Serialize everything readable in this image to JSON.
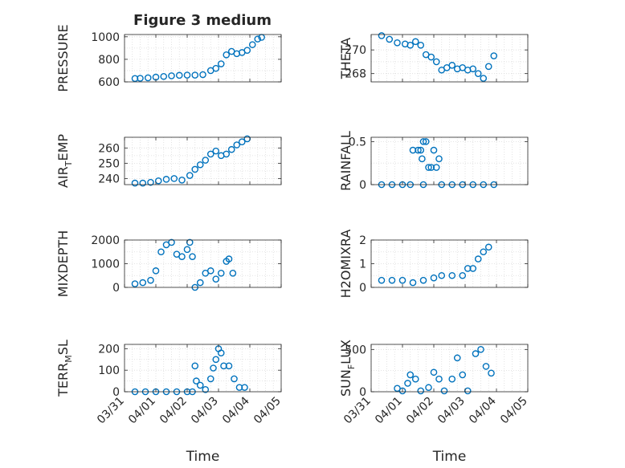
{
  "figure": {
    "title": "Figure 3 medium",
    "xlabel": "Time"
  },
  "chart_data": [
    {
      "type": "scatter",
      "ylabel": "PRESSURE",
      "ylim": [
        600,
        1020
      ],
      "yticks": [
        600,
        800,
        1000
      ],
      "ytick_labels": [
        "600",
        "800",
        "1000"
      ],
      "grid": true,
      "x_dates": true,
      "points": [
        [
          "03/31 08:00",
          630
        ],
        [
          "03/31 12:00",
          632
        ],
        [
          "03/31 18:00",
          636
        ],
        [
          "04/01 00:00",
          642
        ],
        [
          "04/01 06:00",
          648
        ],
        [
          "04/01 12:00",
          654
        ],
        [
          "04/01 18:00",
          658
        ],
        [
          "04/02 00:00",
          660
        ],
        [
          "04/02 06:00",
          660
        ],
        [
          "04/02 12:00",
          664
        ],
        [
          "04/02 18:00",
          700
        ],
        [
          "04/02 22:00",
          720
        ],
        [
          "04/03 02:00",
          760
        ],
        [
          "04/03 06:00",
          840
        ],
        [
          "04/03 10:00",
          870
        ],
        [
          "04/03 14:00",
          850
        ],
        [
          "04/03 18:00",
          860
        ],
        [
          "04/03 22:00",
          880
        ],
        [
          "04/04 02:00",
          930
        ],
        [
          "04/04 06:00",
          980
        ],
        [
          "04/04 09:00",
          995
        ]
      ]
    },
    {
      "type": "scatter",
      "ylabel": "THETA",
      "ylim": [
        267.3,
        271.3
      ],
      "yticks": [
        268,
        270
      ],
      "ytick_labels": [
        "268",
        "270"
      ],
      "grid": true,
      "x_dates": true,
      "points": [
        [
          "03/31 08:00",
          271.2
        ],
        [
          "03/31 14:00",
          270.9
        ],
        [
          "03/31 20:00",
          270.6
        ],
        [
          "04/01 02:00",
          270.5
        ],
        [
          "04/01 06:00",
          270.4
        ],
        [
          "04/01 10:00",
          270.7
        ],
        [
          "04/01 14:00",
          270.4
        ],
        [
          "04/01 18:00",
          269.6
        ],
        [
          "04/01 22:00",
          269.4
        ],
        [
          "04/02 02:00",
          269.0
        ],
        [
          "04/02 06:00",
          268.3
        ],
        [
          "04/02 10:00",
          268.5
        ],
        [
          "04/02 14:00",
          268.7
        ],
        [
          "04/02 18:00",
          268.4
        ],
        [
          "04/02 22:00",
          268.5
        ],
        [
          "04/03 02:00",
          268.3
        ],
        [
          "04/03 06:00",
          268.4
        ],
        [
          "04/03 10:00",
          268.0
        ],
        [
          "04/03 14:00",
          267.6
        ],
        [
          "04/03 18:00",
          268.6
        ],
        [
          "04/03 22:00",
          269.5
        ]
      ]
    },
    {
      "type": "scatter",
      "ylabel_parts": [
        "AIR",
        "T",
        "EMP"
      ],
      "ylim": [
        236,
        267
      ],
      "yticks": [
        240,
        250,
        260
      ],
      "ytick_labels": [
        "240",
        "250",
        "260"
      ],
      "grid": true,
      "x_dates": true,
      "points": [
        [
          "03/31 08:00",
          237
        ],
        [
          "03/31 14:00",
          237
        ],
        [
          "03/31 20:00",
          237.5
        ],
        [
          "04/01 02:00",
          238.5
        ],
        [
          "04/01 08:00",
          239.5
        ],
        [
          "04/01 14:00",
          240
        ],
        [
          "04/01 20:00",
          239
        ],
        [
          "04/02 02:00",
          242
        ],
        [
          "04/02 06:00",
          246
        ],
        [
          "04/02 10:00",
          249
        ],
        [
          "04/02 14:00",
          252
        ],
        [
          "04/02 18:00",
          256
        ],
        [
          "04/02 22:00",
          258
        ],
        [
          "04/03 02:00",
          255
        ],
        [
          "04/03 06:00",
          256
        ],
        [
          "04/03 10:00",
          259
        ],
        [
          "04/03 14:00",
          262
        ],
        [
          "04/03 18:00",
          264
        ],
        [
          "04/03 22:00",
          266
        ]
      ]
    },
    {
      "type": "scatter",
      "ylabel": "RAINFALL",
      "ylim": [
        0,
        0.55
      ],
      "yticks": [
        0,
        0.5
      ],
      "ytick_labels": [
        "0",
        "0.5"
      ],
      "grid": true,
      "x_dates": true,
      "points": [
        [
          "03/31 08:00",
          0
        ],
        [
          "03/31 16:00",
          0
        ],
        [
          "04/01 00:00",
          0
        ],
        [
          "04/01 06:00",
          0
        ],
        [
          "04/01 08:00",
          0.4
        ],
        [
          "04/01 12:00",
          0.4
        ],
        [
          "04/01 14:00",
          0.4
        ],
        [
          "04/01 15:00",
          0.3
        ],
        [
          "04/01 16:00",
          0.5
        ],
        [
          "04/01 18:00",
          0.5
        ],
        [
          "04/01 20:00",
          0.2
        ],
        [
          "04/01 22:00",
          0.2
        ],
        [
          "04/02 00:00",
          0.4
        ],
        [
          "04/02 02:00",
          0.2
        ],
        [
          "04/02 04:00",
          0.3
        ],
        [
          "04/01 16:00",
          0
        ],
        [
          "04/02 06:00",
          0
        ],
        [
          "04/02 14:00",
          0
        ],
        [
          "04/02 22:00",
          0
        ],
        [
          "04/03 06:00",
          0
        ],
        [
          "04/03 14:00",
          0
        ],
        [
          "04/03 22:00",
          0
        ]
      ]
    },
    {
      "type": "scatter",
      "ylabel": "MIXDEPTH",
      "ylim": [
        0,
        2000
      ],
      "yticks": [
        0,
        1000,
        2000
      ],
      "ytick_labels": [
        "0",
        "1000",
        "2000"
      ],
      "grid": true,
      "x_dates": true,
      "points": [
        [
          "03/31 08:00",
          150
        ],
        [
          "03/31 14:00",
          200
        ],
        [
          "03/31 20:00",
          300
        ],
        [
          "04/01 00:00",
          700
        ],
        [
          "04/01 04:00",
          1500
        ],
        [
          "04/01 08:00",
          1800
        ],
        [
          "04/01 12:00",
          1900
        ],
        [
          "04/01 16:00",
          1400
        ],
        [
          "04/01 20:00",
          1300
        ],
        [
          "04/02 00:00",
          1600
        ],
        [
          "04/02 02:00",
          1900
        ],
        [
          "04/02 04:00",
          1300
        ],
        [
          "04/02 06:00",
          0
        ],
        [
          "04/02 10:00",
          200
        ],
        [
          "04/02 14:00",
          600
        ],
        [
          "04/02 18:00",
          700
        ],
        [
          "04/02 22:00",
          350
        ],
        [
          "04/03 02:00",
          600
        ],
        [
          "04/03 06:00",
          1100
        ],
        [
          "04/03 08:00",
          1200
        ],
        [
          "04/03 11:00",
          600
        ]
      ]
    },
    {
      "type": "scatter",
      "ylabel": "H2OMIXRA",
      "ylim": [
        0,
        2
      ],
      "yticks": [
        0,
        1,
        2
      ],
      "ytick_labels": [
        "0",
        "1",
        "2"
      ],
      "grid": true,
      "x_dates": true,
      "points": [
        [
          "03/31 08:00",
          0.3
        ],
        [
          "03/31 16:00",
          0.3
        ],
        [
          "04/01 00:00",
          0.3
        ],
        [
          "04/01 08:00",
          0.2
        ],
        [
          "04/01 16:00",
          0.3
        ],
        [
          "04/02 00:00",
          0.4
        ],
        [
          "04/02 06:00",
          0.5
        ],
        [
          "04/02 14:00",
          0.5
        ],
        [
          "04/02 22:00",
          0.5
        ],
        [
          "04/03 02:00",
          0.8
        ],
        [
          "04/03 06:00",
          0.8
        ],
        [
          "04/03 10:00",
          1.2
        ],
        [
          "04/03 14:00",
          1.5
        ],
        [
          "04/03 18:00",
          1.7
        ]
      ]
    },
    {
      "type": "scatter",
      "ylabel_parts": [
        "TERR",
        "M",
        "SL"
      ],
      "ylim": [
        0,
        220
      ],
      "yticks": [
        0,
        100,
        200
      ],
      "ytick_labels": [
        "0",
        "100",
        "200"
      ],
      "grid": true,
      "x_dates": true,
      "points": [
        [
          "03/31 08:00",
          0
        ],
        [
          "03/31 16:00",
          0
        ],
        [
          "04/01 00:00",
          0
        ],
        [
          "04/01 08:00",
          0
        ],
        [
          "04/01 16:00",
          0
        ],
        [
          "04/02 00:00",
          0
        ],
        [
          "04/02 04:00",
          0
        ],
        [
          "04/02 06:00",
          120
        ],
        [
          "04/02 07:00",
          50
        ],
        [
          "04/02 10:00",
          30
        ],
        [
          "04/02 14:00",
          10
        ],
        [
          "04/02 18:00",
          60
        ],
        [
          "04/02 20:00",
          110
        ],
        [
          "04/02 22:00",
          150
        ],
        [
          "04/03 00:00",
          200
        ],
        [
          "04/03 02:00",
          180
        ],
        [
          "04/03 04:00",
          120
        ],
        [
          "04/03 08:00",
          120
        ],
        [
          "04/03 12:00",
          60
        ],
        [
          "04/03 16:00",
          20
        ],
        [
          "04/03 20:00",
          20
        ]
      ]
    },
    {
      "type": "scatter",
      "ylabel_parts": [
        "SUN",
        "F",
        "LUX"
      ],
      "ylim": [
        0,
        560
      ],
      "yticks": [
        0,
        500
      ],
      "ytick_labels": [
        "0",
        "500"
      ],
      "grid": true,
      "x_dates": true,
      "points": [
        [
          "03/31 20:00",
          40
        ],
        [
          "04/01 00:00",
          10
        ],
        [
          "04/01 04:00",
          100
        ],
        [
          "04/01 06:00",
          200
        ],
        [
          "04/01 10:00",
          150
        ],
        [
          "04/01 14:00",
          10
        ],
        [
          "04/01 20:00",
          50
        ],
        [
          "04/02 00:00",
          230
        ],
        [
          "04/02 04:00",
          150
        ],
        [
          "04/02 08:00",
          10
        ],
        [
          "04/02 14:00",
          150
        ],
        [
          "04/02 18:00",
          400
        ],
        [
          "04/02 22:00",
          200
        ],
        [
          "04/03 02:00",
          10
        ],
        [
          "04/03 08:00",
          450
        ],
        [
          "04/03 12:00",
          500
        ],
        [
          "04/03 16:00",
          300
        ],
        [
          "04/03 20:00",
          220
        ]
      ]
    }
  ],
  "xaxis": {
    "ticks": [
      "03/31",
      "04/01",
      "04/02",
      "04/03",
      "04/04",
      "04/05"
    ],
    "range": [
      "03/31 00:00",
      "04/05 00:00"
    ]
  },
  "colors": {
    "marker": "#0072bd",
    "grid": "#dcdcdc",
    "axis": "#262626"
  }
}
